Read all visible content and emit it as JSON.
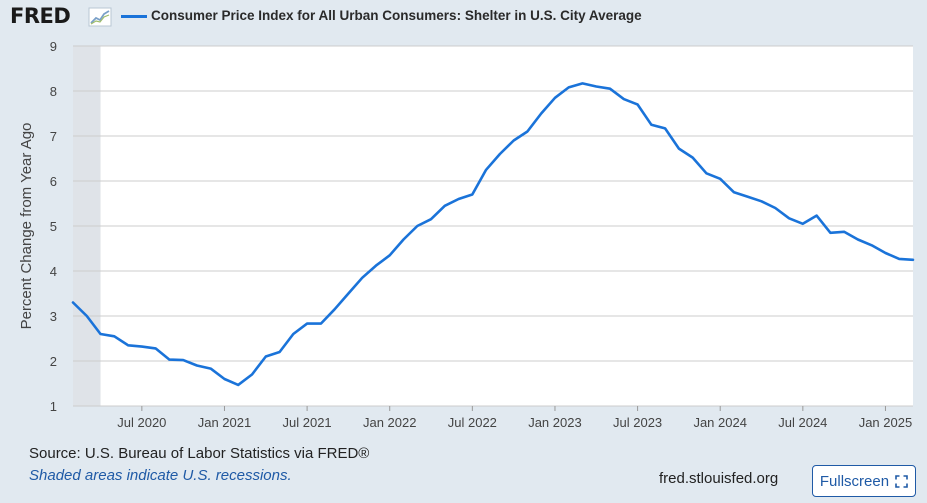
{
  "header": {
    "logo_text": "FRED",
    "series_title": "Consumer Price Index for All Urban Consumers: Shelter in U.S. City Average"
  },
  "footer": {
    "source": "Source: U.S. Bureau of Labor Statistics via FRED®",
    "recession_note": "Shaded areas indicate U.S. recessions.",
    "site": "fred.stlouisfed.org",
    "fullscreen_label": "Fullscreen"
  },
  "colors": {
    "line": "#1a73d9",
    "recession_shade": "#dfe3e8",
    "plot_background": "#ffffff",
    "page_background": "#e1e9f0",
    "gridline": "#cccccc",
    "link_blue": "#1f5aa6"
  },
  "icons": {
    "logo_mark": "trend-chart-icon",
    "fullscreen": "expand-corners-icon"
  },
  "chart_data": {
    "type": "line",
    "title": "Consumer Price Index for All Urban Consumers: Shelter in U.S. City Average",
    "xlabel": "",
    "ylabel": "Percent Change from Year Ago",
    "ylim": [
      1,
      9
    ],
    "yticks": [
      1,
      2,
      3,
      4,
      5,
      6,
      7,
      8,
      9
    ],
    "xlim": [
      "2020-02",
      "2025-03"
    ],
    "xticks": [
      {
        "date": "2020-07",
        "label": "Jul 2020"
      },
      {
        "date": "2021-01",
        "label": "Jan 2021"
      },
      {
        "date": "2021-07",
        "label": "Jul 2021"
      },
      {
        "date": "2022-01",
        "label": "Jan 2022"
      },
      {
        "date": "2022-07",
        "label": "Jul 2022"
      },
      {
        "date": "2023-01",
        "label": "Jan 2023"
      },
      {
        "date": "2023-07",
        "label": "Jul 2023"
      },
      {
        "date": "2024-01",
        "label": "Jan 2024"
      },
      {
        "date": "2024-07",
        "label": "Jul 2024"
      },
      {
        "date": "2025-01",
        "label": "Jan 2025"
      }
    ],
    "grid": true,
    "legend_position": "top-left",
    "recessions": [
      {
        "start": "2020-02",
        "end": "2020-04"
      }
    ],
    "series": [
      {
        "name": "Consumer Price Index for All Urban Consumers: Shelter in U.S. City Average",
        "x": [
          "2020-02",
          "2020-03",
          "2020-04",
          "2020-05",
          "2020-06",
          "2020-07",
          "2020-08",
          "2020-09",
          "2020-10",
          "2020-11",
          "2020-12",
          "2021-01",
          "2021-02",
          "2021-03",
          "2021-04",
          "2021-05",
          "2021-06",
          "2021-07",
          "2021-08",
          "2021-09",
          "2021-10",
          "2021-11",
          "2021-12",
          "2022-01",
          "2022-02",
          "2022-03",
          "2022-04",
          "2022-05",
          "2022-06",
          "2022-07",
          "2022-08",
          "2022-09",
          "2022-10",
          "2022-11",
          "2022-12",
          "2023-01",
          "2023-02",
          "2023-03",
          "2023-04",
          "2023-05",
          "2023-06",
          "2023-07",
          "2023-08",
          "2023-09",
          "2023-10",
          "2023-11",
          "2023-12",
          "2024-01",
          "2024-02",
          "2024-03",
          "2024-04",
          "2024-05",
          "2024-06",
          "2024-07",
          "2024-08",
          "2024-09",
          "2024-10",
          "2024-11",
          "2024-12",
          "2025-01",
          "2025-02",
          "2025-03"
        ],
        "values": [
          3.3,
          3.0,
          2.6,
          2.55,
          2.35,
          2.32,
          2.28,
          2.03,
          2.02,
          1.9,
          1.83,
          1.6,
          1.47,
          1.7,
          2.1,
          2.2,
          2.6,
          2.83,
          2.83,
          3.15,
          3.5,
          3.85,
          4.12,
          4.35,
          4.7,
          5.0,
          5.15,
          5.45,
          5.6,
          5.7,
          6.25,
          6.6,
          6.9,
          7.1,
          7.5,
          7.85,
          8.08,
          8.17,
          8.1,
          8.05,
          7.82,
          7.7,
          7.25,
          7.17,
          6.72,
          6.52,
          6.17,
          6.05,
          5.75,
          5.65,
          5.55,
          5.4,
          5.17,
          5.05,
          5.23,
          4.85,
          4.87,
          4.7,
          4.57,
          4.4,
          4.27,
          4.25
        ]
      }
    ]
  }
}
